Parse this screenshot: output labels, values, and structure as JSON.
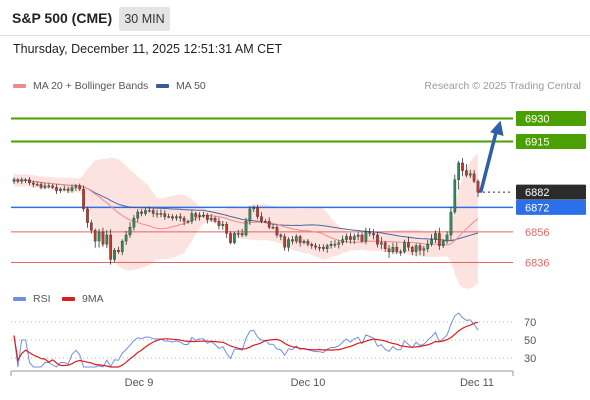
{
  "header": {
    "symbol": "S&P 500 (CME)",
    "timeframe": "30 MIN",
    "timestamp": "Thursday, December 11, 2025 12:51:31 AM CET"
  },
  "legend": {
    "ma20_label": "MA 20 + Bollinger Bands",
    "ma50_label": "MA 50",
    "copyright": "Research © 2025 Trading Central",
    "rsi_label": "RSI",
    "rsi_ma_label": "9MA"
  },
  "colors": {
    "candle_up": "#2e8b57",
    "candle_down": "#c0392b",
    "bollinger_fill": "#fcd9d6",
    "ma20": "#f08a8a",
    "ma50": "#3a5a9c",
    "resistance": "#4aa000",
    "pivot": "#2c6fe8",
    "support": "#e06666",
    "current": "#2b2b2b",
    "arrow": "#2f5fa8",
    "rsi": "#6f8fe6",
    "rsi_ma": "#e01b1b"
  },
  "chart_data": {
    "type": "candlestick",
    "y_range": [
      6822,
      6946
    ],
    "x_labels": [
      "Dec 9",
      "Dec 10",
      "Dec 11"
    ],
    "levels": [
      {
        "name": "resistance-2",
        "value": 6930,
        "label": "6930",
        "style": "resistance"
      },
      {
        "name": "resistance-1",
        "value": 6915,
        "label": "6915",
        "style": "resistance"
      },
      {
        "name": "current-price",
        "value": 6882,
        "label": "6882",
        "style": "current"
      },
      {
        "name": "pivot",
        "value": 6872,
        "label": "6872",
        "style": "pivot"
      },
      {
        "name": "support-1",
        "value": 6856,
        "label": "6856",
        "style": "support"
      },
      {
        "name": "support-2",
        "value": 6836,
        "label": "6836",
        "style": "support"
      }
    ],
    "close": [
      6890,
      6889,
      6890,
      6890,
      6888,
      6887,
      6887,
      6885,
      6886,
      6886,
      6885,
      6883,
      6884,
      6884,
      6883,
      6885,
      6886,
      6884,
      6871,
      6862,
      6857,
      6850,
      6856,
      6848,
      6854,
      6838,
      6844,
      6843,
      6850,
      6854,
      6859,
      6865,
      6869,
      6868,
      6870,
      6870,
      6868,
      6868,
      6868,
      6866,
      6866,
      6865,
      6866,
      6865,
      6863,
      6863,
      6868,
      6866,
      6867,
      6867,
      6864,
      6865,
      6863,
      6860,
      6861,
      6855,
      6849,
      6855,
      6855,
      6854,
      6863,
      6871,
      6872,
      6866,
      6863,
      6863,
      6859,
      6859,
      6854,
      6853,
      6846,
      6851,
      6850,
      6853,
      6849,
      6850,
      6848,
      6847,
      6846,
      6846,
      6845,
      6847,
      6848,
      6848,
      6849,
      6851,
      6853,
      6851,
      6853,
      6854,
      6850,
      6856,
      6855,
      6854,
      6848,
      6849,
      6845,
      6843,
      6846,
      6843,
      6843,
      6849,
      6846,
      6843,
      6847,
      6844,
      6845,
      6848,
      6851,
      6855,
      6847,
      6850,
      6854,
      6869,
      6890,
      6901,
      6896,
      6893,
      6894,
      6889,
      6882
    ],
    "volatility": [
      2,
      2,
      2,
      2,
      2,
      2,
      2,
      2,
      2,
      2,
      2,
      2,
      2,
      2,
      2,
      2,
      2,
      2,
      4,
      5,
      5,
      6,
      6,
      6,
      6,
      6,
      5,
      5,
      5,
      4,
      4,
      4,
      3,
      3,
      3,
      3,
      3,
      3,
      3,
      3,
      3,
      3,
      3,
      3,
      3,
      3,
      3,
      3,
      3,
      3,
      3,
      3,
      3,
      3,
      3,
      4,
      4,
      4,
      4,
      4,
      4,
      5,
      5,
      4,
      4,
      4,
      4,
      3,
      3,
      3,
      3,
      3,
      3,
      3,
      3,
      3,
      3,
      3,
      3,
      3,
      3,
      3,
      3,
      3,
      3,
      3,
      3,
      3,
      3,
      3,
      3,
      3,
      4,
      4,
      4,
      5,
      5,
      5,
      5,
      5,
      5,
      5,
      5,
      5,
      5,
      5,
      5,
      5,
      5,
      5,
      5,
      5,
      5,
      10,
      12,
      12,
      8,
      6,
      6,
      6,
      5
    ],
    "rsi_y_ticks": [
      70,
      50,
      30
    ],
    "rsi_range": [
      20,
      80
    ],
    "price_y_ticks": []
  }
}
